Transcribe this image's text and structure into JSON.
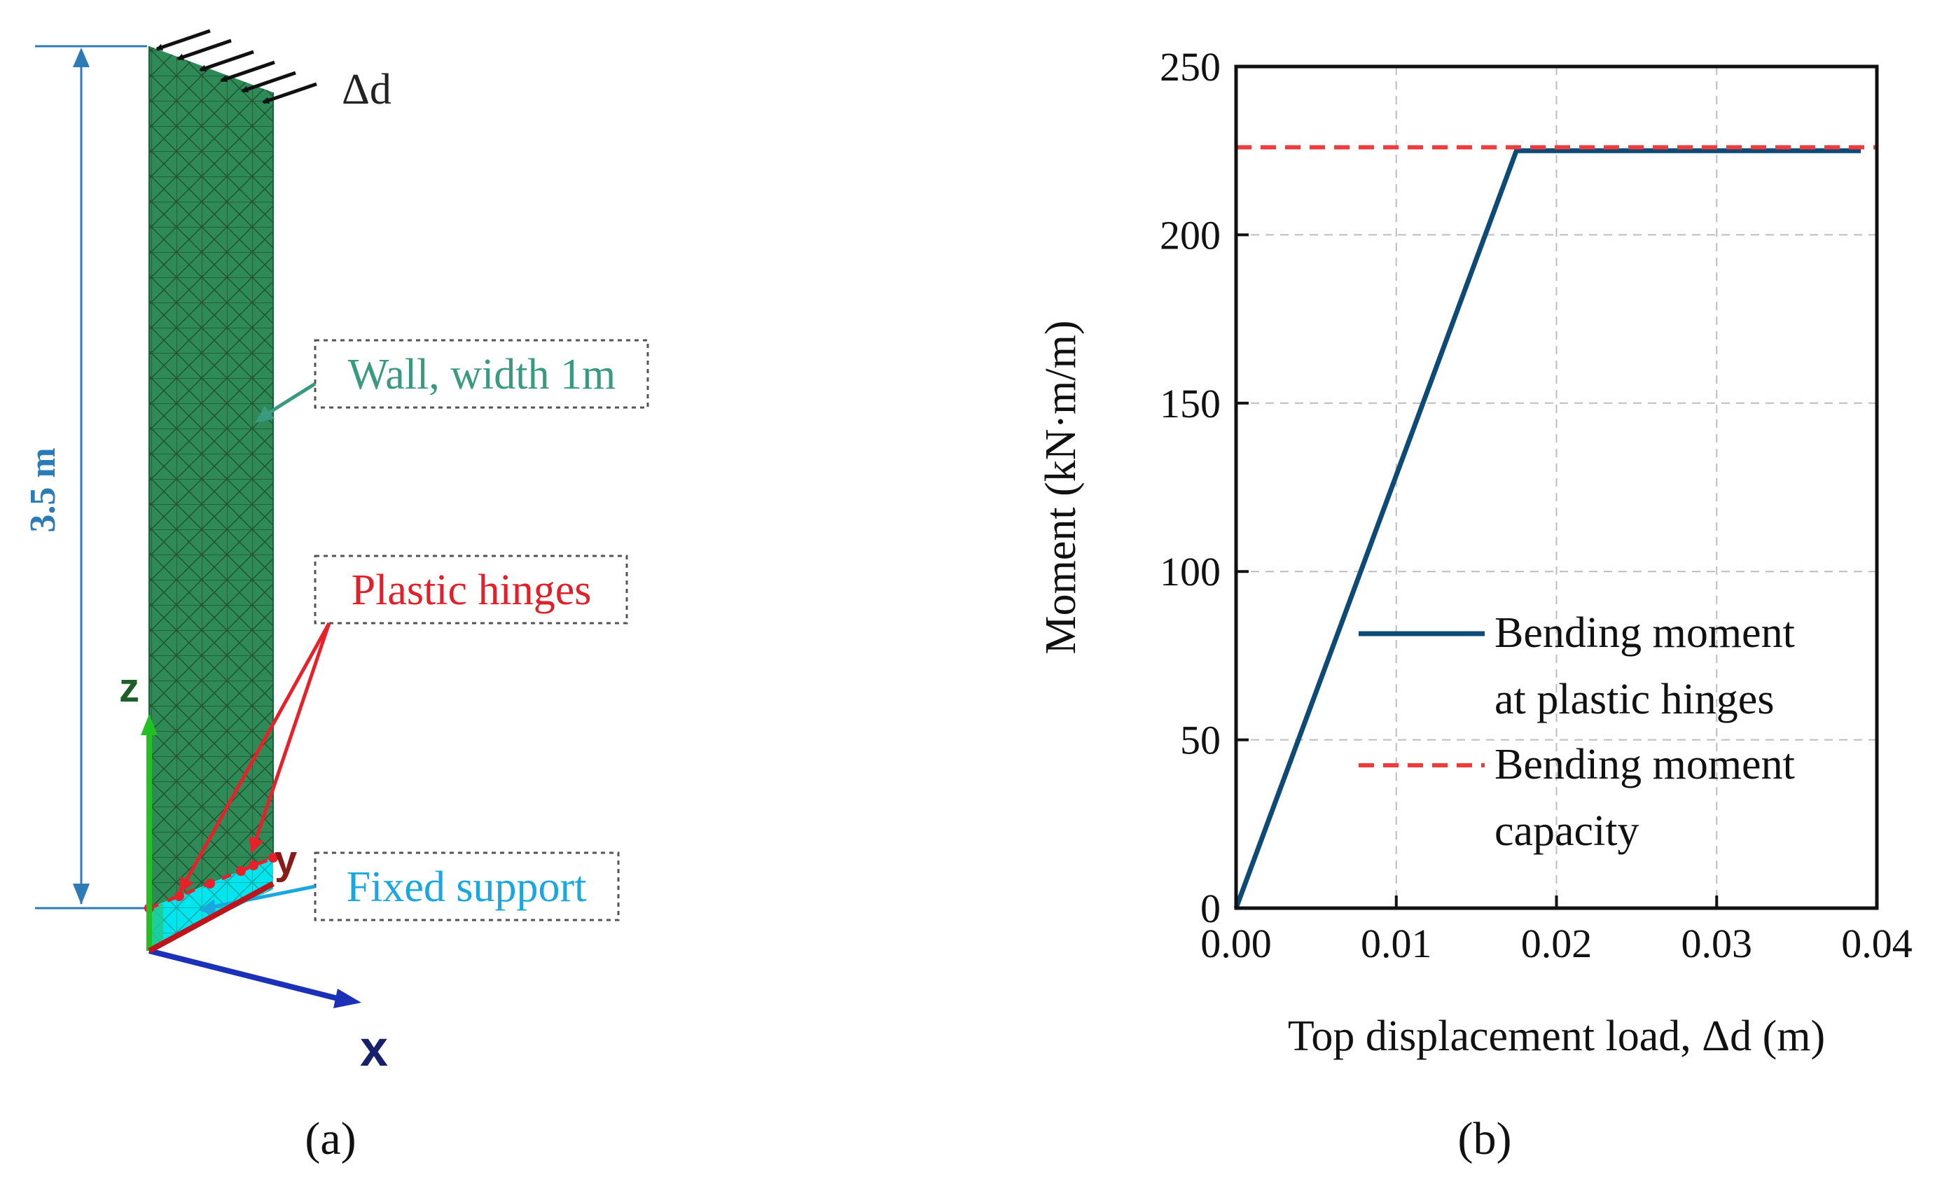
{
  "panel_a": {
    "caption": "(a)",
    "height_label": "3.5 m",
    "load_label": "Δd",
    "wall_label": "Wall, width 1m",
    "hinges_label": "Plastic hinges",
    "support_label": "Fixed support",
    "axis_x": "x",
    "axis_y": "y",
    "axis_z": "z",
    "colors": {
      "wall": "#2e8b57",
      "support": "#00e5ee",
      "hinge": "#e8202a",
      "dimension": "#2d7bb6",
      "wall_text": "#3a9a80",
      "hinge_text": "#e0202a",
      "support_text": "#1aa7e0"
    }
  },
  "panel_b": {
    "caption": "(b)",
    "chart_data": {
      "type": "line",
      "xlabel": "Top displacement load, Δd (m)",
      "ylabel": "Moment (kN·m/m)",
      "xlim": [
        0,
        0.04
      ],
      "ylim": [
        0,
        250
      ],
      "xticks": [
        "0.00",
        "0.01",
        "0.02",
        "0.03",
        "0.04"
      ],
      "yticks": [
        "0",
        "50",
        "100",
        "150",
        "200",
        "250"
      ],
      "grid": true,
      "legend_position": "center-right",
      "series": [
        {
          "name_lines": [
            "Bending moment",
            "at plastic hinges"
          ],
          "style": "solid",
          "color": "#0d4a75",
          "x": [
            0,
            0.0175,
            0.039
          ],
          "y": [
            0,
            225,
            225
          ]
        },
        {
          "name_lines": [
            "Bending moment",
            "capacity"
          ],
          "style": "dashed",
          "color": "#ee3b3b",
          "x": [
            0,
            0.04
          ],
          "y": [
            226,
            226
          ]
        }
      ]
    }
  }
}
